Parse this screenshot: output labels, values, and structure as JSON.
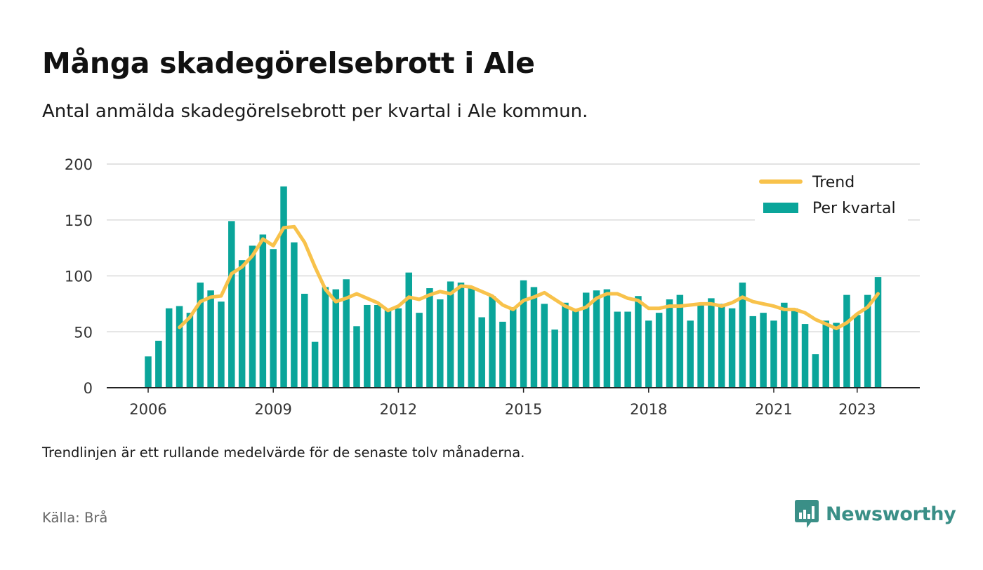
{
  "header": {
    "title": "Många skadegörelsebrott i Ale",
    "subtitle": "Antal anmälda skadegörelsebrott per kvartal i Ale kommun."
  },
  "footer": {
    "note": "Trendlinjen är ett rullande medelvärde för de senaste tolv månaderna.",
    "source": "Källa: Brå",
    "brand": "Newsworthy"
  },
  "colors": {
    "bars": "#0aa59a",
    "trend": "#f8c24b",
    "grid": "#d9d9d9",
    "axis": "#222222",
    "brand": "#3a8f87"
  },
  "chart_data": {
    "type": "bar",
    "ylim": [
      0,
      200
    ],
    "yticks": [
      0,
      50,
      100,
      150,
      200
    ],
    "xticks": [
      "2006",
      "2009",
      "2012",
      "2015",
      "2018",
      "2021",
      "2023"
    ],
    "grid": true,
    "legend_position": "top-right",
    "x": [
      "2006 Q1",
      "2006 Q2",
      "2006 Q3",
      "2006 Q4",
      "2007 Q1",
      "2007 Q2",
      "2007 Q3",
      "2007 Q4",
      "2008 Q1",
      "2008 Q2",
      "2008 Q3",
      "2008 Q4",
      "2009 Q1",
      "2009 Q2",
      "2009 Q3",
      "2009 Q4",
      "2010 Q1",
      "2010 Q2",
      "2010 Q3",
      "2010 Q4",
      "2011 Q1",
      "2011 Q2",
      "2011 Q3",
      "2011 Q4",
      "2012 Q1",
      "2012 Q2",
      "2012 Q3",
      "2012 Q4",
      "2013 Q1",
      "2013 Q2",
      "2013 Q3",
      "2013 Q4",
      "2014 Q1",
      "2014 Q2",
      "2014 Q3",
      "2014 Q4",
      "2015 Q1",
      "2015 Q2",
      "2015 Q3",
      "2015 Q4",
      "2016 Q1",
      "2016 Q2",
      "2016 Q3",
      "2016 Q4",
      "2017 Q1",
      "2017 Q2",
      "2017 Q3",
      "2017 Q4",
      "2018 Q1",
      "2018 Q2",
      "2018 Q3",
      "2018 Q4",
      "2019 Q1",
      "2019 Q2",
      "2019 Q3",
      "2019 Q4",
      "2020 Q1",
      "2020 Q2",
      "2020 Q3",
      "2020 Q4",
      "2021 Q1",
      "2021 Q2",
      "2021 Q3",
      "2021 Q4",
      "2022 Q1",
      "2022 Q2",
      "2022 Q3",
      "2022 Q4",
      "2023 Q1",
      "2023 Q2",
      "2023 Q3"
    ],
    "series": [
      {
        "name": "Per kvartal",
        "type": "bar",
        "values": [
          28,
          42,
          71,
          73,
          67,
          94,
          87,
          77,
          149,
          114,
          127,
          137,
          124,
          180,
          130,
          84,
          41,
          90,
          88,
          97,
          55,
          74,
          74,
          70,
          71,
          103,
          67,
          89,
          79,
          95,
          94,
          89,
          63,
          82,
          59,
          72,
          96,
          90,
          75,
          52,
          76,
          70,
          85,
          87,
          88,
          68,
          68,
          82,
          60,
          67,
          79,
          83,
          60,
          75,
          80,
          75,
          71,
          94,
          64,
          67,
          60,
          76,
          71,
          57,
          30,
          60,
          58,
          83,
          65,
          83,
          99
        ]
      },
      {
        "name": "Trend",
        "type": "line",
        "values": [
          null,
          null,
          null,
          54,
          63,
          77,
          81,
          82,
          102,
          108,
          118,
          133,
          127,
          143,
          144,
          130,
          108,
          88,
          77,
          80,
          84,
          80,
          76,
          69,
          73,
          81,
          79,
          83,
          86,
          84,
          91,
          90,
          86,
          82,
          74,
          70,
          78,
          81,
          85,
          79,
          73,
          69,
          72,
          80,
          84,
          84,
          80,
          78,
          71,
          71,
          73,
          73,
          74,
          75,
          75,
          73,
          76,
          81,
          77,
          75,
          73,
          70,
          70,
          67,
          61,
          57,
          53,
          58,
          66,
          72,
          84
        ]
      }
    ]
  }
}
